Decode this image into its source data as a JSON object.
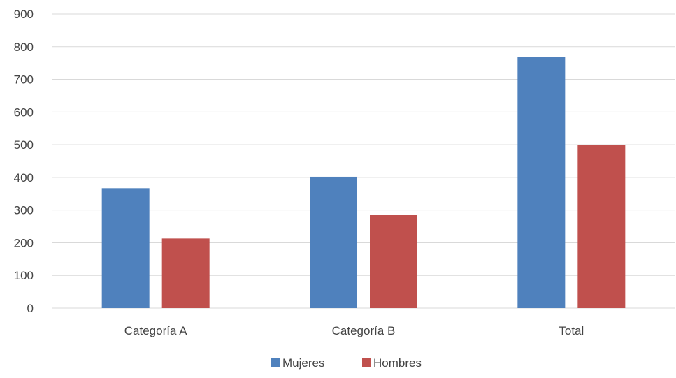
{
  "chart_data": {
    "type": "bar",
    "categories": [
      "Categoría A",
      "Categoría B",
      "Total"
    ],
    "series": [
      {
        "name": "Mujeres",
        "values": [
          367,
          402,
          769
        ]
      },
      {
        "name": "Hombres",
        "values": [
          213,
          286,
          499
        ]
      }
    ],
    "title": "",
    "xlabel": "",
    "ylabel": "",
    "ylim": [
      0,
      900
    ],
    "yticks": [
      "0",
      "100",
      "200",
      "300",
      "400",
      "500",
      "600",
      "700",
      "800",
      "900"
    ],
    "grid": true,
    "legend_position": "bottom",
    "colors": {
      "Mujeres": "#4f81bd",
      "Hombres": "#c0504d",
      "grid": "#d9d9d9",
      "text": "#444444"
    }
  }
}
